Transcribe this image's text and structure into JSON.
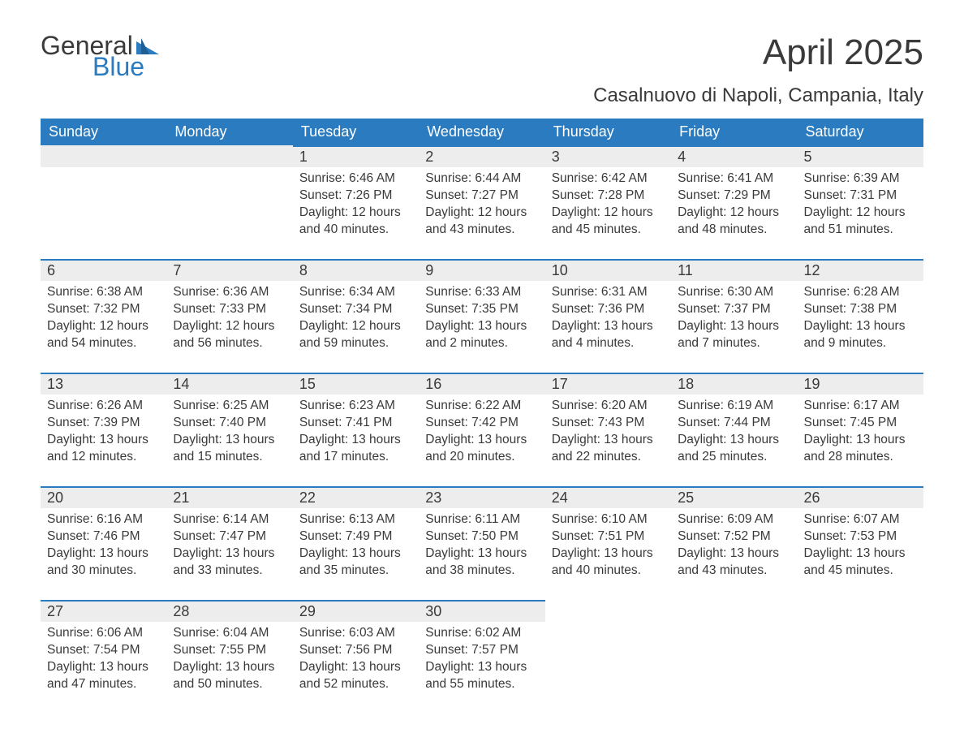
{
  "logo": {
    "general": "General",
    "blue": "Blue"
  },
  "title": "April 2025",
  "subtitle": "Casalnuovo di Napoli, Campania, Italy",
  "colors": {
    "header_bg": "#2a7bbf",
    "header_text": "#ffffff",
    "daynum_bg": "#ededed",
    "daynum_border": "#2a7bbf",
    "body_text": "#3a3a3a",
    "page_bg": "#ffffff",
    "logo_accent": "#2a7bbf"
  },
  "typography": {
    "title_fontsize": 44,
    "subtitle_fontsize": 24,
    "th_fontsize": 18,
    "cell_fontsize": 15.5
  },
  "weekdays": [
    "Sunday",
    "Monday",
    "Tuesday",
    "Wednesday",
    "Thursday",
    "Friday",
    "Saturday"
  ],
  "weeks": [
    [
      {
        "day": "",
        "sunrise": "",
        "sunset": "",
        "daylight_a": "",
        "daylight_b": ""
      },
      {
        "day": "",
        "sunrise": "",
        "sunset": "",
        "daylight_a": "",
        "daylight_b": ""
      },
      {
        "day": "1",
        "sunrise": "Sunrise: 6:46 AM",
        "sunset": "Sunset: 7:26 PM",
        "daylight_a": "Daylight: 12 hours",
        "daylight_b": "and 40 minutes."
      },
      {
        "day": "2",
        "sunrise": "Sunrise: 6:44 AM",
        "sunset": "Sunset: 7:27 PM",
        "daylight_a": "Daylight: 12 hours",
        "daylight_b": "and 43 minutes."
      },
      {
        "day": "3",
        "sunrise": "Sunrise: 6:42 AM",
        "sunset": "Sunset: 7:28 PM",
        "daylight_a": "Daylight: 12 hours",
        "daylight_b": "and 45 minutes."
      },
      {
        "day": "4",
        "sunrise": "Sunrise: 6:41 AM",
        "sunset": "Sunset: 7:29 PM",
        "daylight_a": "Daylight: 12 hours",
        "daylight_b": "and 48 minutes."
      },
      {
        "day": "5",
        "sunrise": "Sunrise: 6:39 AM",
        "sunset": "Sunset: 7:31 PM",
        "daylight_a": "Daylight: 12 hours",
        "daylight_b": "and 51 minutes."
      }
    ],
    [
      {
        "day": "6",
        "sunrise": "Sunrise: 6:38 AM",
        "sunset": "Sunset: 7:32 PM",
        "daylight_a": "Daylight: 12 hours",
        "daylight_b": "and 54 minutes."
      },
      {
        "day": "7",
        "sunrise": "Sunrise: 6:36 AM",
        "sunset": "Sunset: 7:33 PM",
        "daylight_a": "Daylight: 12 hours",
        "daylight_b": "and 56 minutes."
      },
      {
        "day": "8",
        "sunrise": "Sunrise: 6:34 AM",
        "sunset": "Sunset: 7:34 PM",
        "daylight_a": "Daylight: 12 hours",
        "daylight_b": "and 59 minutes."
      },
      {
        "day": "9",
        "sunrise": "Sunrise: 6:33 AM",
        "sunset": "Sunset: 7:35 PM",
        "daylight_a": "Daylight: 13 hours",
        "daylight_b": "and 2 minutes."
      },
      {
        "day": "10",
        "sunrise": "Sunrise: 6:31 AM",
        "sunset": "Sunset: 7:36 PM",
        "daylight_a": "Daylight: 13 hours",
        "daylight_b": "and 4 minutes."
      },
      {
        "day": "11",
        "sunrise": "Sunrise: 6:30 AM",
        "sunset": "Sunset: 7:37 PM",
        "daylight_a": "Daylight: 13 hours",
        "daylight_b": "and 7 minutes."
      },
      {
        "day": "12",
        "sunrise": "Sunrise: 6:28 AM",
        "sunset": "Sunset: 7:38 PM",
        "daylight_a": "Daylight: 13 hours",
        "daylight_b": "and 9 minutes."
      }
    ],
    [
      {
        "day": "13",
        "sunrise": "Sunrise: 6:26 AM",
        "sunset": "Sunset: 7:39 PM",
        "daylight_a": "Daylight: 13 hours",
        "daylight_b": "and 12 minutes."
      },
      {
        "day": "14",
        "sunrise": "Sunrise: 6:25 AM",
        "sunset": "Sunset: 7:40 PM",
        "daylight_a": "Daylight: 13 hours",
        "daylight_b": "and 15 minutes."
      },
      {
        "day": "15",
        "sunrise": "Sunrise: 6:23 AM",
        "sunset": "Sunset: 7:41 PM",
        "daylight_a": "Daylight: 13 hours",
        "daylight_b": "and 17 minutes."
      },
      {
        "day": "16",
        "sunrise": "Sunrise: 6:22 AM",
        "sunset": "Sunset: 7:42 PM",
        "daylight_a": "Daylight: 13 hours",
        "daylight_b": "and 20 minutes."
      },
      {
        "day": "17",
        "sunrise": "Sunrise: 6:20 AM",
        "sunset": "Sunset: 7:43 PM",
        "daylight_a": "Daylight: 13 hours",
        "daylight_b": "and 22 minutes."
      },
      {
        "day": "18",
        "sunrise": "Sunrise: 6:19 AM",
        "sunset": "Sunset: 7:44 PM",
        "daylight_a": "Daylight: 13 hours",
        "daylight_b": "and 25 minutes."
      },
      {
        "day": "19",
        "sunrise": "Sunrise: 6:17 AM",
        "sunset": "Sunset: 7:45 PM",
        "daylight_a": "Daylight: 13 hours",
        "daylight_b": "and 28 minutes."
      }
    ],
    [
      {
        "day": "20",
        "sunrise": "Sunrise: 6:16 AM",
        "sunset": "Sunset: 7:46 PM",
        "daylight_a": "Daylight: 13 hours",
        "daylight_b": "and 30 minutes."
      },
      {
        "day": "21",
        "sunrise": "Sunrise: 6:14 AM",
        "sunset": "Sunset: 7:47 PM",
        "daylight_a": "Daylight: 13 hours",
        "daylight_b": "and 33 minutes."
      },
      {
        "day": "22",
        "sunrise": "Sunrise: 6:13 AM",
        "sunset": "Sunset: 7:49 PM",
        "daylight_a": "Daylight: 13 hours",
        "daylight_b": "and 35 minutes."
      },
      {
        "day": "23",
        "sunrise": "Sunrise: 6:11 AM",
        "sunset": "Sunset: 7:50 PM",
        "daylight_a": "Daylight: 13 hours",
        "daylight_b": "and 38 minutes."
      },
      {
        "day": "24",
        "sunrise": "Sunrise: 6:10 AM",
        "sunset": "Sunset: 7:51 PM",
        "daylight_a": "Daylight: 13 hours",
        "daylight_b": "and 40 minutes."
      },
      {
        "day": "25",
        "sunrise": "Sunrise: 6:09 AM",
        "sunset": "Sunset: 7:52 PM",
        "daylight_a": "Daylight: 13 hours",
        "daylight_b": "and 43 minutes."
      },
      {
        "day": "26",
        "sunrise": "Sunrise: 6:07 AM",
        "sunset": "Sunset: 7:53 PM",
        "daylight_a": "Daylight: 13 hours",
        "daylight_b": "and 45 minutes."
      }
    ],
    [
      {
        "day": "27",
        "sunrise": "Sunrise: 6:06 AM",
        "sunset": "Sunset: 7:54 PM",
        "daylight_a": "Daylight: 13 hours",
        "daylight_b": "and 47 minutes."
      },
      {
        "day": "28",
        "sunrise": "Sunrise: 6:04 AM",
        "sunset": "Sunset: 7:55 PM",
        "daylight_a": "Daylight: 13 hours",
        "daylight_b": "and 50 minutes."
      },
      {
        "day": "29",
        "sunrise": "Sunrise: 6:03 AM",
        "sunset": "Sunset: 7:56 PM",
        "daylight_a": "Daylight: 13 hours",
        "daylight_b": "and 52 minutes."
      },
      {
        "day": "30",
        "sunrise": "Sunrise: 6:02 AM",
        "sunset": "Sunset: 7:57 PM",
        "daylight_a": "Daylight: 13 hours",
        "daylight_b": "and 55 minutes."
      },
      {
        "day": "",
        "sunrise": "",
        "sunset": "",
        "daylight_a": "",
        "daylight_b": ""
      },
      {
        "day": "",
        "sunrise": "",
        "sunset": "",
        "daylight_a": "",
        "daylight_b": ""
      },
      {
        "day": "",
        "sunrise": "",
        "sunset": "",
        "daylight_a": "",
        "daylight_b": ""
      }
    ]
  ]
}
